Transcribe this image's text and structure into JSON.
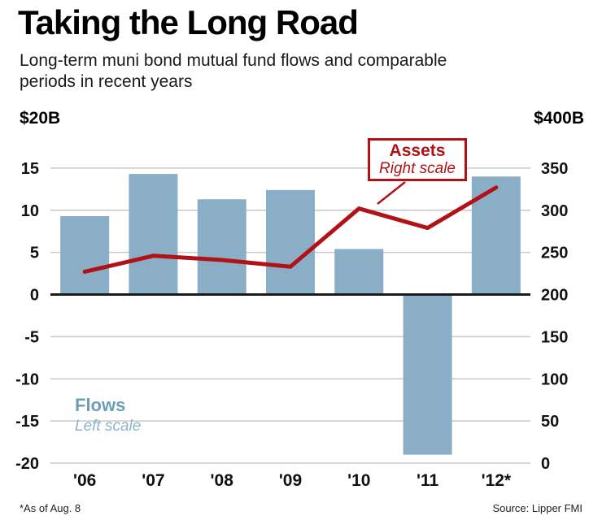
{
  "header": {
    "title": "Taking the Long Road",
    "subtitle_lines": [
      "Long-term muni bond mutual fund flows and comparable",
      "periods in recent years"
    ]
  },
  "chart_data": {
    "type": "bar",
    "title": "Taking the Long Road",
    "subtitle": "Long-term muni bond mutual fund flows and comparable periods in recent years",
    "categories": [
      "'06",
      "'07",
      "'08",
      "'09",
      "'10",
      "'11",
      "'12*"
    ],
    "series": [
      {
        "name": "Flows",
        "type": "bar",
        "axis": "left",
        "values": [
          9.3,
          14.3,
          11.3,
          12.4,
          5.4,
          -19,
          14
        ]
      },
      {
        "name": "Assets",
        "type": "line",
        "axis": "right",
        "values": [
          227,
          246,
          241,
          233,
          302,
          279,
          327
        ]
      }
    ],
    "left_axis": {
      "label": "$20B",
      "min": -20,
      "max": 20,
      "ticks": [
        15,
        10,
        5,
        0,
        -5,
        -10,
        -15,
        -20
      ]
    },
    "right_axis": {
      "label": "$400B",
      "min": 0,
      "max": 400,
      "ticks": [
        350,
        300,
        250,
        200,
        150,
        100,
        50,
        0
      ]
    },
    "grid": true,
    "legend_position": "annotations-on-plot",
    "annotations": {
      "assets": {
        "line1": "Assets",
        "line2": "Right scale"
      },
      "flows": {
        "line1": "Flows",
        "line2": "Left scale"
      }
    },
    "colors": {
      "bar": "#8aaec5",
      "line": "#b01217",
      "grid": "#c8c8c8",
      "zero_line": "#1a1a1a",
      "flows_text": "#6d9cb8"
    }
  },
  "footer": {
    "note": "*As of Aug. 8",
    "source": "Source: Lipper FMI"
  }
}
